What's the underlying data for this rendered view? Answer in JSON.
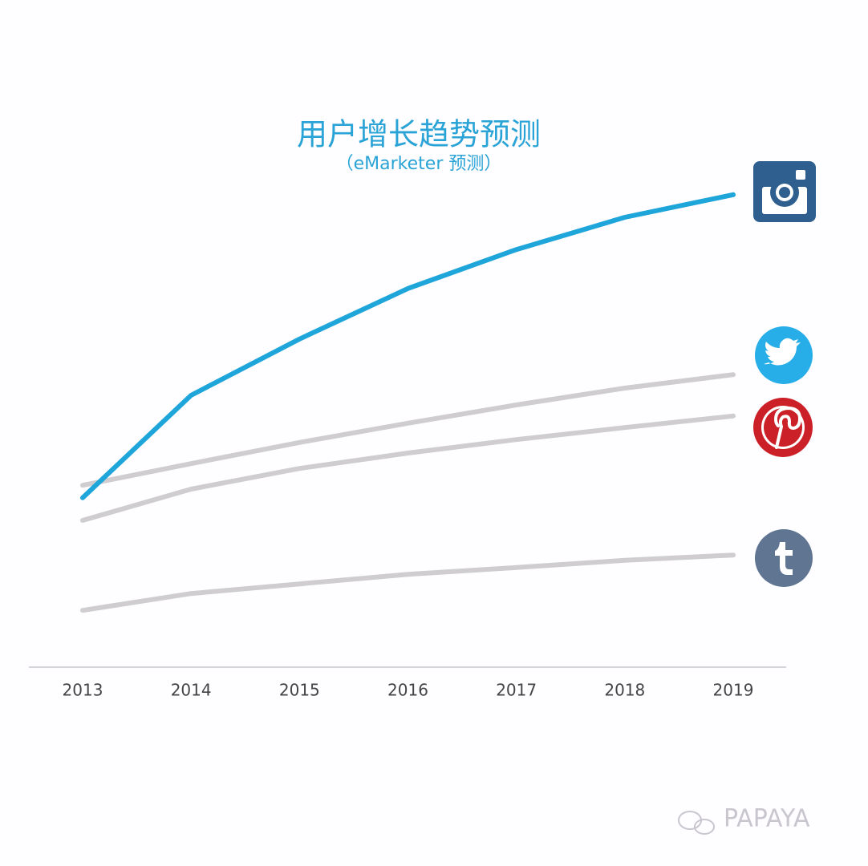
{
  "chart_data": {
    "type": "line",
    "title": "用户增长趋势预测",
    "subtitle": "（eMarketer 预测）",
    "categories": [
      "2013",
      "2014",
      "2015",
      "2016",
      "2017",
      "2018",
      "2019"
    ],
    "series": [
      {
        "color": "#1ea5d9",
        "values": [
          35.2,
          56.5,
          68.2,
          78.7,
          86.8,
          93.5,
          98.2
        ]
      },
      {
        "color": "#cfcdd0",
        "values": [
          37.8,
          42.3,
          46.7,
          50.7,
          54.5,
          58,
          60.8
        ]
      },
      {
        "color": "#cfcdd0",
        "values": [
          30.5,
          37,
          41.3,
          44.5,
          47.3,
          49.8,
          52.2
        ]
      },
      {
        "color": "#cfcdd0",
        "values": [
          11.8,
          15.3,
          17.3,
          19.3,
          20.7,
          22.2,
          23.3
        ]
      }
    ],
    "ylim": [
      0,
      100
    ],
    "watermark": "PAPAYA"
  }
}
